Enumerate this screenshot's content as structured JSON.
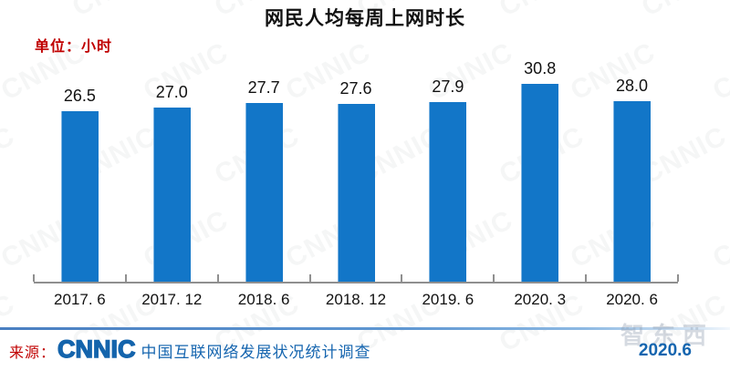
{
  "title": "网民人均每周上网时长",
  "unit_label": "单位：小时",
  "chart_data": {
    "type": "bar",
    "categories": [
      "2017. 6",
      "2017. 12",
      "2018. 6",
      "2018. 12",
      "2019. 6",
      "2020. 3",
      "2020. 6"
    ],
    "values": [
      26.5,
      27.0,
      27.7,
      27.6,
      27.9,
      30.8,
      28.0
    ],
    "value_labels": [
      "26.5",
      "27.0",
      "27.7",
      "27.6",
      "27.9",
      "30.8",
      "28.0"
    ],
    "title": "网民人均每周上网时长",
    "xlabel": "",
    "ylabel": "单位：小时",
    "ylim": [
      0,
      35
    ],
    "grid": false,
    "legend": false,
    "bar_color": "#1276C8",
    "axis_color": "#8F8F8F"
  },
  "footer": {
    "source_label": "来源：",
    "logo_text": "CNNIC",
    "source_text": "中国互联网络发展状况统计调查",
    "date": "2020.6"
  },
  "watermark": {
    "tile_text": "CNNIC",
    "corner_text": "智东西"
  },
  "colors": {
    "bar_blue": "#1276C8",
    "link_blue": "#1565AF",
    "logo_blue": "#1464AC",
    "label_red": "#C00000",
    "axis_gray": "#8F8F8F"
  }
}
